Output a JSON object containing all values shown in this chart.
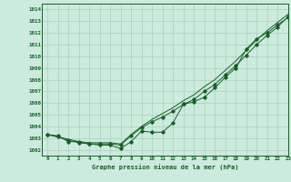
{
  "xlabel": "Graphe pression niveau de la mer (hPa)",
  "ylim": [
    1001.5,
    1014.5
  ],
  "xlim": [
    -0.5,
    23
  ],
  "yticks": [
    1002,
    1003,
    1004,
    1005,
    1006,
    1007,
    1008,
    1009,
    1010,
    1011,
    1012,
    1013,
    1014
  ],
  "xticks": [
    0,
    1,
    2,
    3,
    4,
    5,
    6,
    7,
    8,
    9,
    10,
    11,
    12,
    13,
    14,
    15,
    16,
    17,
    18,
    19,
    20,
    21,
    22,
    23
  ],
  "background_color": "#cceade",
  "grid_color": "#aacfbe",
  "line_color": "#1a5e2a",
  "series1": [
    1003.3,
    1003.2,
    1002.7,
    1002.7,
    1002.5,
    1002.4,
    1002.4,
    1002.1,
    1002.7,
    1003.6,
    1003.5,
    1003.5,
    1004.3,
    1005.9,
    1006.1,
    1006.5,
    1007.3,
    1008.2,
    1009.0,
    1010.6,
    1011.5,
    1012.0,
    1012.7,
    1013.3
  ],
  "series2": [
    1003.3,
    1003.1,
    1002.8,
    1002.6,
    1002.5,
    1002.5,
    1002.5,
    1002.4,
    1003.2,
    1003.9,
    1004.4,
    1004.8,
    1005.3,
    1005.9,
    1006.3,
    1007.0,
    1007.6,
    1008.4,
    1009.2,
    1010.1,
    1011.0,
    1011.8,
    1012.5,
    1013.4
  ],
  "series3": [
    1003.3,
    1003.1,
    1002.9,
    1002.7,
    1002.6,
    1002.6,
    1002.6,
    1002.5,
    1003.3,
    1004.0,
    1004.6,
    1005.1,
    1005.6,
    1006.2,
    1006.7,
    1007.4,
    1008.0,
    1008.8,
    1009.6,
    1010.5,
    1011.4,
    1012.2,
    1012.9,
    1013.6
  ]
}
